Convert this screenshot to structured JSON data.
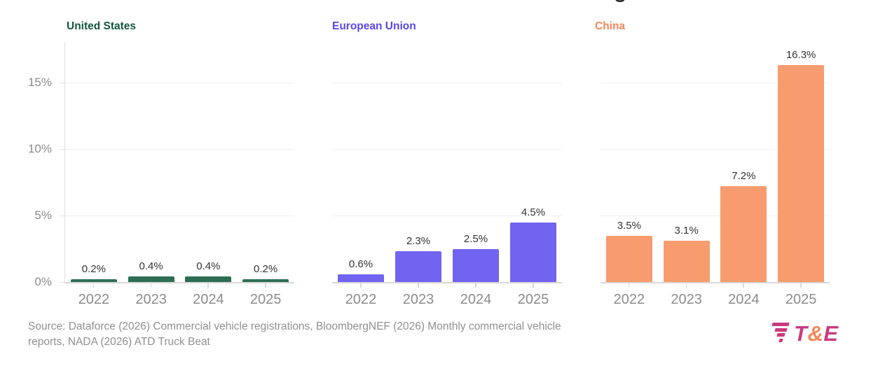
{
  "title_fragment": "g",
  "chart_data": {
    "type": "bar",
    "panel_layout": "small-multiples",
    "categories": [
      "2022",
      "2023",
      "2024",
      "2025"
    ],
    "series": [
      {
        "name": "United States",
        "values": [
          0.2,
          0.4,
          0.4,
          0.2
        ],
        "bar_color": "#2E6E55",
        "title_color": "#14563E"
      },
      {
        "name": "European Union",
        "values": [
          0.6,
          2.3,
          2.5,
          4.5
        ],
        "bar_color": "#7164F0",
        "title_color": "#5748EE"
      },
      {
        "name": "China",
        "values": [
          3.5,
          3.1,
          7.2,
          16.3
        ],
        "bar_color": "#F89B6E",
        "title_color": "#F6865A"
      }
    ],
    "value_labels": [
      [
        "0.2%",
        "0.4%",
        "0.4%",
        "0.2%"
      ],
      [
        "0.6%",
        "2.3%",
        "2.5%",
        "4.5%"
      ],
      [
        "3.5%",
        "3.1%",
        "7.2%",
        "16.3%"
      ]
    ],
    "yticks": [
      0,
      5,
      10,
      15
    ],
    "ytick_labels": [
      "0%",
      "5%",
      "10%",
      "15%"
    ],
    "ylim": [
      0,
      18
    ],
    "grid": true
  },
  "footer": {
    "source_line1": "Source: Dataforce (2026) Commercial vehicle registrations, BloombergNEF (2026) Monthly commercial vehicle",
    "source_line2": "reports, NADA (2026) ATD Truck Beat"
  },
  "logo": {
    "t": "T",
    "amp": "&",
    "e": "E",
    "pink": "#C93B7C",
    "orange": "#F6865A"
  }
}
